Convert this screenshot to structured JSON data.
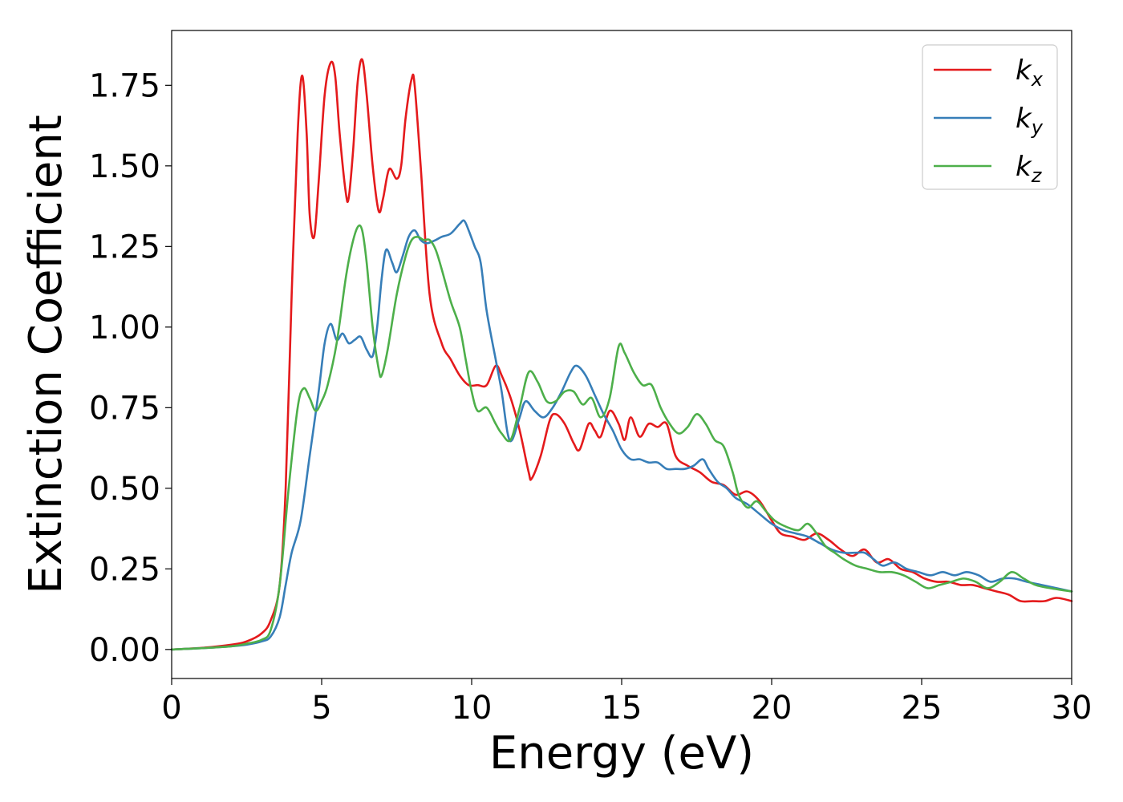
{
  "chart_data": {
    "type": "line",
    "title": "",
    "xlabel": "Energy (eV)",
    "ylabel": "Extinction Coefficient",
    "xlim": [
      0,
      30
    ],
    "ylim": [
      -0.09,
      1.92
    ],
    "xticks": [
      0,
      5,
      10,
      15,
      20,
      25,
      30
    ],
    "xtick_labels": [
      "0",
      "5",
      "10",
      "15",
      "20",
      "25",
      "30"
    ],
    "yticks": [
      0,
      0.25,
      0.5,
      0.75,
      1.0,
      1.25,
      1.5,
      1.75
    ],
    "ytick_labels": [
      "0.00",
      "0.25",
      "0.50",
      "0.75",
      "1.00",
      "1.25",
      "1.50",
      "1.75"
    ],
    "grid": false,
    "legend_position": "top-right",
    "series": [
      {
        "name": "k_x",
        "legend_base": "k",
        "legend_sub": "x",
        "color": "#e41a1c",
        "points": [
          [
            0,
            0
          ],
          [
            1,
            0.005
          ],
          [
            2,
            0.015
          ],
          [
            2.5,
            0.025
          ],
          [
            3,
            0.05
          ],
          [
            3.3,
            0.09
          ],
          [
            3.6,
            0.2
          ],
          [
            3.8,
            0.5
          ],
          [
            4.0,
            1.1
          ],
          [
            4.2,
            1.6
          ],
          [
            4.35,
            1.78
          ],
          [
            4.5,
            1.6
          ],
          [
            4.6,
            1.35
          ],
          [
            4.75,
            1.28
          ],
          [
            4.9,
            1.45
          ],
          [
            5.1,
            1.72
          ],
          [
            5.3,
            1.82
          ],
          [
            5.45,
            1.78
          ],
          [
            5.6,
            1.6
          ],
          [
            5.8,
            1.42
          ],
          [
            5.9,
            1.4
          ],
          [
            6.05,
            1.55
          ],
          [
            6.2,
            1.76
          ],
          [
            6.35,
            1.83
          ],
          [
            6.5,
            1.72
          ],
          [
            6.7,
            1.5
          ],
          [
            6.9,
            1.36
          ],
          [
            7.05,
            1.4
          ],
          [
            7.25,
            1.49
          ],
          [
            7.5,
            1.46
          ],
          [
            7.65,
            1.5
          ],
          [
            7.8,
            1.65
          ],
          [
            8.0,
            1.77
          ],
          [
            8.1,
            1.75
          ],
          [
            8.3,
            1.5
          ],
          [
            8.6,
            1.1
          ],
          [
            9.0,
            0.95
          ],
          [
            9.3,
            0.9
          ],
          [
            9.6,
            0.85
          ],
          [
            9.9,
            0.82
          ],
          [
            10.2,
            0.82
          ],
          [
            10.5,
            0.82
          ],
          [
            10.8,
            0.88
          ],
          [
            11.0,
            0.85
          ],
          [
            11.3,
            0.78
          ],
          [
            11.6,
            0.68
          ],
          [
            11.9,
            0.55
          ],
          [
            12.0,
            0.53
          ],
          [
            12.3,
            0.6
          ],
          [
            12.6,
            0.71
          ],
          [
            12.8,
            0.73
          ],
          [
            13.1,
            0.7
          ],
          [
            13.4,
            0.64
          ],
          [
            13.6,
            0.62
          ],
          [
            13.9,
            0.7
          ],
          [
            14.1,
            0.68
          ],
          [
            14.3,
            0.66
          ],
          [
            14.6,
            0.74
          ],
          [
            14.9,
            0.7
          ],
          [
            15.1,
            0.65
          ],
          [
            15.3,
            0.72
          ],
          [
            15.6,
            0.66
          ],
          [
            15.9,
            0.7
          ],
          [
            16.2,
            0.69
          ],
          [
            16.5,
            0.7
          ],
          [
            16.8,
            0.6
          ],
          [
            17.2,
            0.57
          ],
          [
            17.6,
            0.55
          ],
          [
            18.0,
            0.52
          ],
          [
            18.4,
            0.51
          ],
          [
            18.8,
            0.48
          ],
          [
            19.2,
            0.49
          ],
          [
            19.6,
            0.46
          ],
          [
            20.0,
            0.4
          ],
          [
            20.3,
            0.36
          ],
          [
            20.7,
            0.35
          ],
          [
            21.1,
            0.34
          ],
          [
            21.5,
            0.36
          ],
          [
            21.9,
            0.34
          ],
          [
            22.3,
            0.31
          ],
          [
            22.7,
            0.29
          ],
          [
            23.1,
            0.31
          ],
          [
            23.5,
            0.27
          ],
          [
            23.9,
            0.28
          ],
          [
            24.3,
            0.25
          ],
          [
            24.7,
            0.24
          ],
          [
            25.1,
            0.22
          ],
          [
            25.5,
            0.21
          ],
          [
            25.9,
            0.21
          ],
          [
            26.3,
            0.2
          ],
          [
            26.7,
            0.2
          ],
          [
            27.1,
            0.19
          ],
          [
            27.5,
            0.18
          ],
          [
            27.9,
            0.17
          ],
          [
            28.3,
            0.15
          ],
          [
            28.7,
            0.15
          ],
          [
            29.1,
            0.15
          ],
          [
            29.5,
            0.16
          ],
          [
            30,
            0.15
          ]
        ]
      },
      {
        "name": "k_y",
        "legend_base": "k",
        "legend_sub": "y",
        "color": "#377eb8",
        "points": [
          [
            0,
            0
          ],
          [
            1,
            0.004
          ],
          [
            2,
            0.01
          ],
          [
            2.5,
            0.015
          ],
          [
            3,
            0.025
          ],
          [
            3.3,
            0.04
          ],
          [
            3.6,
            0.1
          ],
          [
            3.8,
            0.2
          ],
          [
            4.0,
            0.3
          ],
          [
            4.3,
            0.4
          ],
          [
            4.6,
            0.6
          ],
          [
            4.9,
            0.8
          ],
          [
            5.1,
            0.95
          ],
          [
            5.3,
            1.01
          ],
          [
            5.5,
            0.96
          ],
          [
            5.7,
            0.98
          ],
          [
            5.9,
            0.95
          ],
          [
            6.1,
            0.96
          ],
          [
            6.3,
            0.97
          ],
          [
            6.5,
            0.93
          ],
          [
            6.7,
            0.91
          ],
          [
            6.85,
            1.0
          ],
          [
            7.0,
            1.15
          ],
          [
            7.15,
            1.24
          ],
          [
            7.35,
            1.2
          ],
          [
            7.5,
            1.17
          ],
          [
            7.7,
            1.22
          ],
          [
            7.9,
            1.28
          ],
          [
            8.1,
            1.3
          ],
          [
            8.3,
            1.27
          ],
          [
            8.5,
            1.26
          ],
          [
            8.8,
            1.27
          ],
          [
            9.0,
            1.28
          ],
          [
            9.3,
            1.29
          ],
          [
            9.6,
            1.32
          ],
          [
            9.75,
            1.33
          ],
          [
            9.9,
            1.3
          ],
          [
            10.1,
            1.25
          ],
          [
            10.3,
            1.2
          ],
          [
            10.5,
            1.05
          ],
          [
            10.8,
            0.9
          ],
          [
            11.0,
            0.8
          ],
          [
            11.2,
            0.67
          ],
          [
            11.35,
            0.65
          ],
          [
            11.6,
            0.72
          ],
          [
            11.8,
            0.77
          ],
          [
            12.1,
            0.74
          ],
          [
            12.4,
            0.72
          ],
          [
            12.7,
            0.75
          ],
          [
            13.0,
            0.8
          ],
          [
            13.3,
            0.86
          ],
          [
            13.5,
            0.88
          ],
          [
            13.8,
            0.85
          ],
          [
            14.1,
            0.79
          ],
          [
            14.4,
            0.73
          ],
          [
            14.7,
            0.68
          ],
          [
            15.0,
            0.62
          ],
          [
            15.3,
            0.59
          ],
          [
            15.6,
            0.59
          ],
          [
            15.9,
            0.58
          ],
          [
            16.2,
            0.58
          ],
          [
            16.5,
            0.56
          ],
          [
            16.8,
            0.56
          ],
          [
            17.1,
            0.56
          ],
          [
            17.4,
            0.57
          ],
          [
            17.7,
            0.59
          ],
          [
            17.9,
            0.56
          ],
          [
            18.2,
            0.52
          ],
          [
            18.5,
            0.5
          ],
          [
            18.8,
            0.47
          ],
          [
            19.2,
            0.45
          ],
          [
            19.6,
            0.42
          ],
          [
            20.0,
            0.39
          ],
          [
            20.4,
            0.37
          ],
          [
            20.8,
            0.36
          ],
          [
            21.2,
            0.35
          ],
          [
            21.6,
            0.33
          ],
          [
            22.0,
            0.31
          ],
          [
            22.4,
            0.3
          ],
          [
            22.8,
            0.3
          ],
          [
            23.1,
            0.3
          ],
          [
            23.4,
            0.28
          ],
          [
            23.7,
            0.26
          ],
          [
            24.1,
            0.27
          ],
          [
            24.5,
            0.25
          ],
          [
            24.9,
            0.24
          ],
          [
            25.3,
            0.23
          ],
          [
            25.7,
            0.24
          ],
          [
            26.1,
            0.23
          ],
          [
            26.5,
            0.24
          ],
          [
            26.9,
            0.23
          ],
          [
            27.3,
            0.21
          ],
          [
            27.7,
            0.22
          ],
          [
            28.1,
            0.22
          ],
          [
            28.5,
            0.21
          ],
          [
            29.0,
            0.2
          ],
          [
            29.5,
            0.19
          ],
          [
            30,
            0.18
          ]
        ]
      },
      {
        "name": "k_z",
        "legend_base": "k",
        "legend_sub": "z",
        "color": "#4daf4a",
        "points": [
          [
            0,
            0
          ],
          [
            1,
            0.004
          ],
          [
            2,
            0.01
          ],
          [
            2.5,
            0.018
          ],
          [
            3,
            0.03
          ],
          [
            3.3,
            0.06
          ],
          [
            3.6,
            0.2
          ],
          [
            3.9,
            0.5
          ],
          [
            4.2,
            0.75
          ],
          [
            4.4,
            0.81
          ],
          [
            4.6,
            0.78
          ],
          [
            4.8,
            0.74
          ],
          [
            5.0,
            0.77
          ],
          [
            5.2,
            0.82
          ],
          [
            5.5,
            0.95
          ],
          [
            5.8,
            1.15
          ],
          [
            6.0,
            1.25
          ],
          [
            6.2,
            1.31
          ],
          [
            6.35,
            1.3
          ],
          [
            6.5,
            1.2
          ],
          [
            6.7,
            1.0
          ],
          [
            6.9,
            0.87
          ],
          [
            7.0,
            0.85
          ],
          [
            7.2,
            0.93
          ],
          [
            7.5,
            1.1
          ],
          [
            7.8,
            1.22
          ],
          [
            8.0,
            1.27
          ],
          [
            8.2,
            1.28
          ],
          [
            8.4,
            1.27
          ],
          [
            8.6,
            1.27
          ],
          [
            8.8,
            1.24
          ],
          [
            9.0,
            1.18
          ],
          [
            9.3,
            1.08
          ],
          [
            9.6,
            1.0
          ],
          [
            9.8,
            0.9
          ],
          [
            10.0,
            0.8
          ],
          [
            10.2,
            0.74
          ],
          [
            10.5,
            0.75
          ],
          [
            10.8,
            0.7
          ],
          [
            11.0,
            0.67
          ],
          [
            11.3,
            0.65
          ],
          [
            11.6,
            0.75
          ],
          [
            11.9,
            0.86
          ],
          [
            12.2,
            0.83
          ],
          [
            12.5,
            0.77
          ],
          [
            12.8,
            0.77
          ],
          [
            13.1,
            0.8
          ],
          [
            13.4,
            0.8
          ],
          [
            13.7,
            0.76
          ],
          [
            14.0,
            0.78
          ],
          [
            14.3,
            0.72
          ],
          [
            14.6,
            0.78
          ],
          [
            14.9,
            0.94
          ],
          [
            15.1,
            0.92
          ],
          [
            15.4,
            0.86
          ],
          [
            15.7,
            0.82
          ],
          [
            16.0,
            0.82
          ],
          [
            16.3,
            0.75
          ],
          [
            16.6,
            0.7
          ],
          [
            16.9,
            0.67
          ],
          [
            17.2,
            0.69
          ],
          [
            17.5,
            0.73
          ],
          [
            17.8,
            0.7
          ],
          [
            18.1,
            0.65
          ],
          [
            18.4,
            0.63
          ],
          [
            18.7,
            0.55
          ],
          [
            18.9,
            0.48
          ],
          [
            19.2,
            0.44
          ],
          [
            19.5,
            0.46
          ],
          [
            19.8,
            0.43
          ],
          [
            20.1,
            0.4
          ],
          [
            20.5,
            0.38
          ],
          [
            20.9,
            0.37
          ],
          [
            21.2,
            0.39
          ],
          [
            21.5,
            0.36
          ],
          [
            21.8,
            0.32
          ],
          [
            22.1,
            0.3
          ],
          [
            22.4,
            0.28
          ],
          [
            22.8,
            0.26
          ],
          [
            23.2,
            0.25
          ],
          [
            23.6,
            0.24
          ],
          [
            24.0,
            0.24
          ],
          [
            24.4,
            0.23
          ],
          [
            24.8,
            0.21
          ],
          [
            25.2,
            0.19
          ],
          [
            25.6,
            0.2
          ],
          [
            26.0,
            0.21
          ],
          [
            26.4,
            0.22
          ],
          [
            26.8,
            0.21
          ],
          [
            27.2,
            0.19
          ],
          [
            27.6,
            0.21
          ],
          [
            28.0,
            0.24
          ],
          [
            28.4,
            0.22
          ],
          [
            28.8,
            0.2
          ],
          [
            29.3,
            0.19
          ],
          [
            30,
            0.18
          ]
        ]
      }
    ]
  }
}
